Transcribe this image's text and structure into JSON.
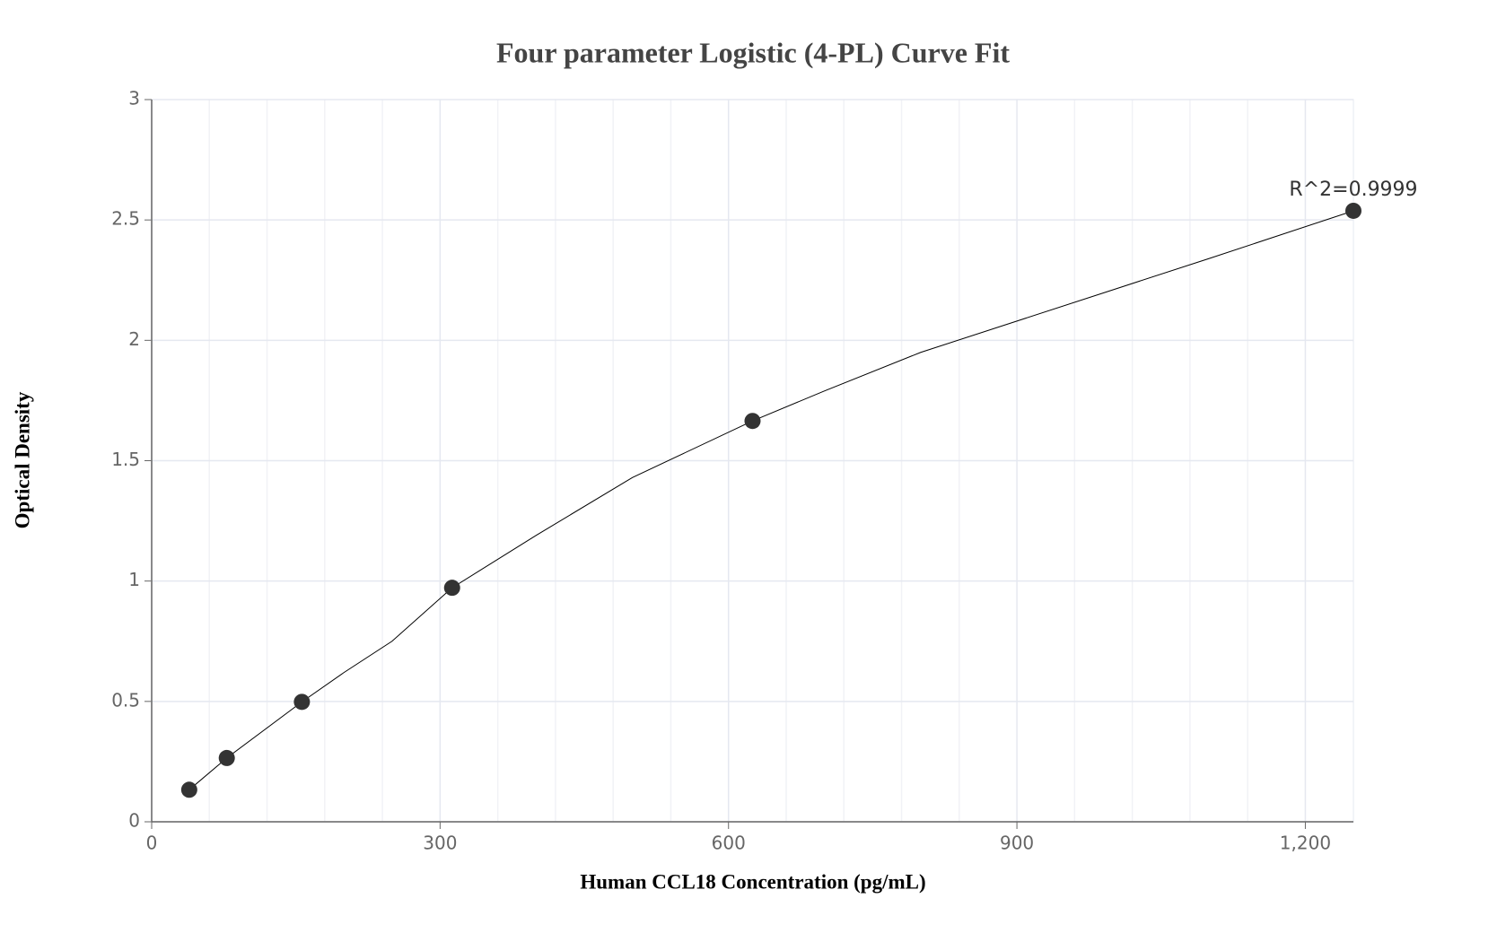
{
  "chart_data": {
    "type": "scatter",
    "title": "Four parameter Logistic (4-PL) Curve Fit",
    "x_label": "Human CCL18 Concentration (pg/mL)",
    "y_label": "Optical Density",
    "x": [
      39.06,
      78.13,
      156.25,
      312.5,
      625,
      1250
    ],
    "values": [
      0.133,
      0.265,
      0.498,
      0.972,
      1.665,
      2.538
    ],
    "color": "#333333",
    "fit_curve": {
      "x": [
        39.06,
        78.13,
        156.25,
        200,
        250,
        312.5,
        400,
        500,
        625,
        700,
        800,
        900,
        1000,
        1100,
        1250
      ],
      "values": [
        0.133,
        0.265,
        0.498,
        0.62,
        0.75,
        0.972,
        1.19,
        1.43,
        1.665,
        1.79,
        1.95,
        2.08,
        2.21,
        2.34,
        2.538
      ],
      "color": "#000000"
    },
    "annotation": "R^2=0.9999",
    "xlim": [
      0,
      1250
    ],
    "xticks": [
      0,
      300,
      600,
      900,
      {
        "value": 1200,
        "label": "1,200"
      }
    ],
    "xminorticks": [
      60,
      120,
      180,
      240,
      360,
      420,
      480,
      540,
      660,
      720,
      780,
      840,
      960,
      1020,
      1080,
      1140
    ],
    "ylim": [
      0,
      3
    ],
    "yticks": [
      0,
      0.5,
      1,
      1.5,
      2,
      2.5,
      3
    ],
    "grid": true
  }
}
